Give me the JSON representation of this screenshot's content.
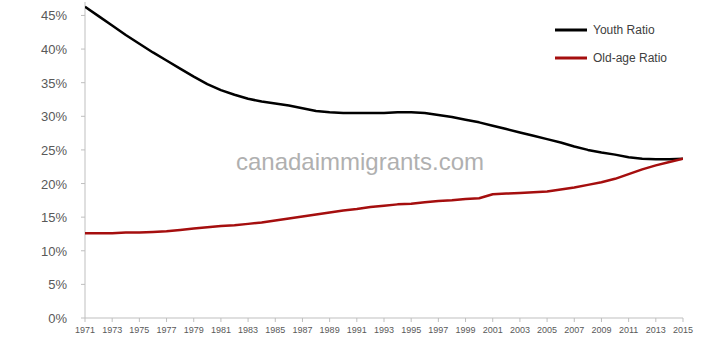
{
  "chart_data": {
    "type": "line",
    "annotations": [
      "canadaimmigrants.com"
    ],
    "x": [
      1971,
      1972,
      1973,
      1974,
      1975,
      1976,
      1977,
      1978,
      1979,
      1980,
      1981,
      1982,
      1983,
      1984,
      1985,
      1986,
      1987,
      1988,
      1989,
      1990,
      1991,
      1992,
      1993,
      1994,
      1995,
      1996,
      1997,
      1998,
      1999,
      2000,
      2001,
      2002,
      2003,
      2004,
      2005,
      2006,
      2007,
      2008,
      2009,
      2010,
      2011,
      2012,
      2013,
      2014,
      2015
    ],
    "series": [
      {
        "name": "Youth Ratio",
        "color": "#000000",
        "values": [
          46.3,
          44.9,
          43.5,
          42.1,
          40.8,
          39.5,
          38.3,
          37.1,
          35.9,
          34.8,
          33.9,
          33.2,
          32.6,
          32.2,
          31.9,
          31.6,
          31.2,
          30.8,
          30.6,
          30.5,
          30.5,
          30.5,
          30.5,
          30.6,
          30.6,
          30.5,
          30.2,
          29.9,
          29.5,
          29.1,
          28.6,
          28.1,
          27.6,
          27.1,
          26.6,
          26.1,
          25.5,
          25.0,
          24.6,
          24.3,
          23.9,
          23.7,
          23.6,
          23.6,
          23.7
        ]
      },
      {
        "name": "Old-age Ratio",
        "color": "#a50e0e",
        "values": [
          12.6,
          12.6,
          12.6,
          12.7,
          12.7,
          12.8,
          12.9,
          13.1,
          13.3,
          13.5,
          13.7,
          13.8,
          14.0,
          14.2,
          14.5,
          14.8,
          15.1,
          15.4,
          15.7,
          16.0,
          16.2,
          16.5,
          16.7,
          16.9,
          17.0,
          17.2,
          17.4,
          17.5,
          17.7,
          17.8,
          18.4,
          18.5,
          18.6,
          18.7,
          18.8,
          19.1,
          19.4,
          19.8,
          20.2,
          20.7,
          21.4,
          22.1,
          22.7,
          23.2,
          23.7
        ]
      }
    ],
    "xlim": [
      1971,
      2015
    ],
    "xticks": [
      1971,
      1973,
      1975,
      1977,
      1979,
      1981,
      1983,
      1985,
      1987,
      1989,
      1991,
      1993,
      1995,
      1997,
      1999,
      2001,
      2003,
      2005,
      2007,
      2009,
      2011,
      2013,
      2015
    ],
    "ylim": [
      0,
      47
    ],
    "yticks": [
      {
        "value": 0,
        "label": "0%"
      },
      {
        "value": 5,
        "label": "5%"
      },
      {
        "value": 10,
        "label": "10%"
      },
      {
        "value": 15,
        "label": "15%"
      },
      {
        "value": 20,
        "label": "20%"
      },
      {
        "value": 25,
        "label": "25%"
      },
      {
        "value": 30,
        "label": "30%"
      },
      {
        "value": 35,
        "label": "35%"
      },
      {
        "value": 40,
        "label": "40%"
      },
      {
        "value": 45,
        "label": "45%"
      }
    ],
    "grid": false,
    "legend": "upper right"
  }
}
